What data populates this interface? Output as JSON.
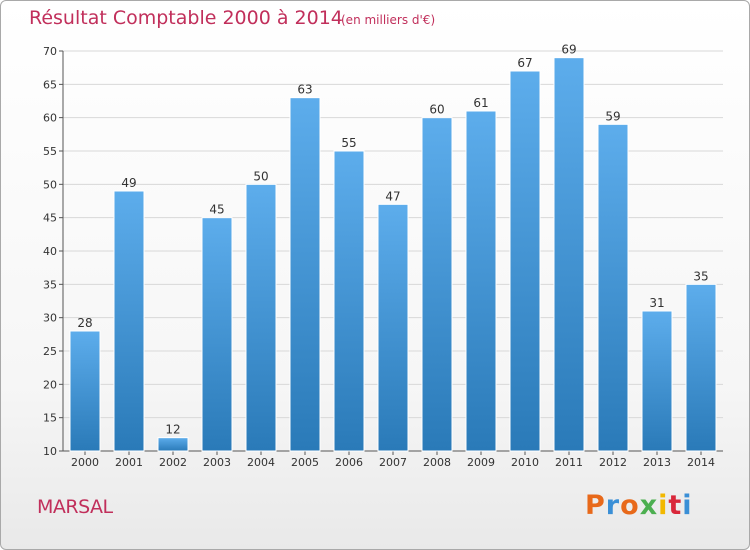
{
  "header": {
    "title": "Résultat Comptable 2000 à 2014",
    "unit": "(en milliers d'€)"
  },
  "footer": {
    "commune": "MARSAL",
    "brand": "Proxiti",
    "brand_colors": [
      "#e8691a",
      "#3a8fd6",
      "#e8691a",
      "#4caf50",
      "#f2b800",
      "#d9273a",
      "#3a8fd6"
    ]
  },
  "colors": {
    "bar_light": "#5dadec",
    "bar_dark": "#2a7ab8",
    "title": "#c12f5b",
    "grid": "#d8d8d8"
  },
  "chart_data": {
    "type": "bar",
    "categories": [
      "2000",
      "2001",
      "2002",
      "2003",
      "2004",
      "2005",
      "2006",
      "2007",
      "2008",
      "2009",
      "2010",
      "2011",
      "2012",
      "2013",
      "2014"
    ],
    "values": [
      28,
      49,
      12,
      45,
      50,
      63,
      55,
      47,
      60,
      61,
      67,
      69,
      59,
      31,
      35
    ],
    "ylim": [
      10,
      70
    ],
    "yticks": [
      10,
      15,
      20,
      25,
      30,
      35,
      40,
      45,
      50,
      55,
      60,
      65,
      70
    ],
    "grid": true,
    "data_labels": true
  }
}
